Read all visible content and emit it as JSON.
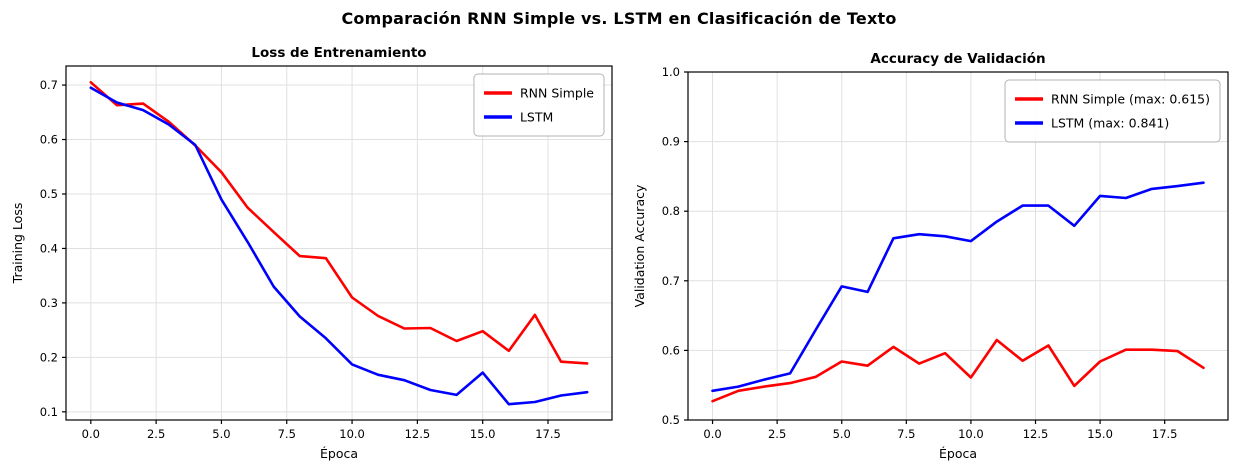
{
  "figure": {
    "title": "Comparación RNN Simple vs. LSTM en Clasificación de Texto",
    "background": "#ffffff"
  },
  "colors": {
    "rnn": "#ff0000",
    "lstm": "#0000ff",
    "grid": "#e0e0e0",
    "spine": "#000000",
    "tick_text": "#000000",
    "legend_border": "#b3b3b3",
    "legend_bg": "#ffffff"
  },
  "chart_data": [
    {
      "type": "line",
      "title": "Loss de Entrenamiento",
      "xlabel": "Época",
      "ylabel": "Training Loss",
      "x": [
        0,
        1,
        2,
        3,
        4,
        5,
        6,
        7,
        8,
        9,
        10,
        11,
        12,
        13,
        14,
        15,
        16,
        17,
        18,
        19
      ],
      "series": [
        {
          "name": "RNN Simple",
          "color": "#ff0000",
          "values": [
            0.705,
            0.663,
            0.666,
            0.632,
            0.589,
            0.54,
            0.475,
            0.43,
            0.386,
            0.382,
            0.31,
            0.276,
            0.253,
            0.254,
            0.23,
            0.248,
            0.212,
            0.278,
            0.192,
            0.189
          ]
        },
        {
          "name": "LSTM",
          "color": "#0000ff",
          "values": [
            0.695,
            0.668,
            0.654,
            0.627,
            0.59,
            0.49,
            0.412,
            0.33,
            0.275,
            0.235,
            0.187,
            0.168,
            0.158,
            0.14,
            0.131,
            0.172,
            0.114,
            0.118,
            0.13,
            0.136
          ]
        }
      ],
      "xlim": [
        -0.95,
        19.95
      ],
      "ylim": [
        0.085,
        0.735
      ],
      "x_ticks": [
        0,
        2.5,
        5,
        7.5,
        10,
        12.5,
        15,
        17.5
      ],
      "x_tick_labels": [
        "0.0",
        "2.5",
        "5.0",
        "7.5",
        "10.0",
        "12.5",
        "15.0",
        "17.5"
      ],
      "y_ticks": [
        0.1,
        0.2,
        0.3,
        0.4,
        0.5,
        0.6,
        0.7
      ],
      "y_tick_labels": [
        "0.1",
        "0.2",
        "0.3",
        "0.4",
        "0.5",
        "0.6",
        "0.7"
      ],
      "grid": true,
      "legend": {
        "position": "upper right",
        "labels": [
          "RNN Simple",
          "LSTM"
        ]
      }
    },
    {
      "type": "line",
      "title": "Accuracy de Validación",
      "xlabel": "Época",
      "ylabel": "Validation Accuracy",
      "x": [
        0,
        1,
        2,
        3,
        4,
        5,
        6,
        7,
        8,
        9,
        10,
        11,
        12,
        13,
        14,
        15,
        16,
        17,
        18,
        19
      ],
      "series": [
        {
          "name": "RNN Simple (max: 0.615)",
          "color": "#ff0000",
          "values": [
            0.527,
            0.542,
            0.548,
            0.553,
            0.562,
            0.584,
            0.578,
            0.605,
            0.581,
            0.596,
            0.561,
            0.615,
            0.585,
            0.607,
            0.549,
            0.584,
            0.601,
            0.601,
            0.599,
            0.575
          ]
        },
        {
          "name": "LSTM (max: 0.841)",
          "color": "#0000ff",
          "values": [
            0.542,
            0.548,
            0.558,
            0.567,
            0.63,
            0.692,
            0.684,
            0.761,
            0.767,
            0.764,
            0.757,
            0.785,
            0.808,
            0.808,
            0.779,
            0.822,
            0.819,
            0.832,
            0.836,
            0.841
          ]
        }
      ],
      "xlim": [
        -0.95,
        19.95
      ],
      "ylim": [
        0.5,
        1.0
      ],
      "x_ticks": [
        0,
        2.5,
        5,
        7.5,
        10,
        12.5,
        15,
        17.5
      ],
      "x_tick_labels": [
        "0.0",
        "2.5",
        "5.0",
        "7.5",
        "10.0",
        "12.5",
        "15.0",
        "17.5"
      ],
      "y_ticks": [
        0.5,
        0.6,
        0.7,
        0.8,
        0.9,
        1.0
      ],
      "y_tick_labels": [
        "0.5",
        "0.6",
        "0.7",
        "0.8",
        "0.9",
        "1.0"
      ],
      "grid": true,
      "legend": {
        "position": "upper right",
        "labels": [
          "RNN Simple (max: 0.615)",
          "LSTM (max: 0.841)"
        ]
      }
    }
  ]
}
